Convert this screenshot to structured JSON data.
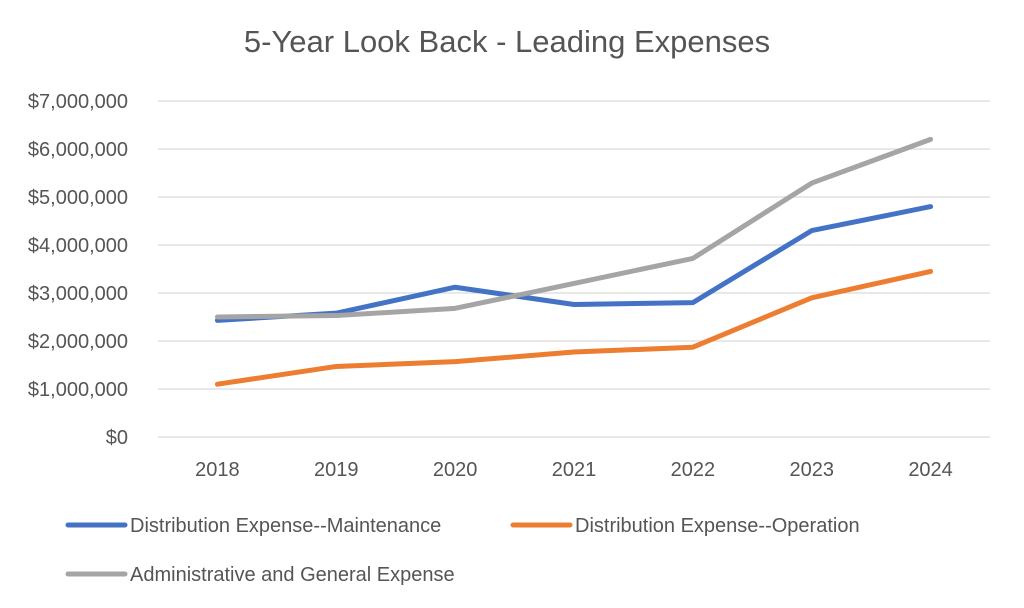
{
  "chart_data": {
    "type": "line",
    "title": "5-Year Look Back - Leading Expenses",
    "xlabel": "",
    "ylabel": "",
    "categories": [
      "2018",
      "2019",
      "2020",
      "2021",
      "2022",
      "2023",
      "2024"
    ],
    "ylim": [
      0,
      7000000
    ],
    "yticks": [
      0,
      1000000,
      2000000,
      3000000,
      4000000,
      5000000,
      6000000,
      7000000
    ],
    "ytick_labels": [
      "$0",
      "$1,000,000",
      "$2,000,000",
      "$3,000,000",
      "$4,000,000",
      "$5,000,000",
      "$6,000,000",
      "$7,000,000"
    ],
    "grid": "horizontal",
    "legend_position": "bottom",
    "series": [
      {
        "name": "Distribution Expense--Maintenance",
        "color": "#4472C4",
        "values": [
          2430000,
          2580000,
          3120000,
          2760000,
          2800000,
          4300000,
          4800000
        ]
      },
      {
        "name": "Distribution Expense--Operation",
        "color": "#ED7D31",
        "values": [
          1100000,
          1470000,
          1570000,
          1770000,
          1870000,
          2900000,
          3450000
        ]
      },
      {
        "name": "Administrative and General Expense",
        "color": "#A5A5A5",
        "values": [
          2500000,
          2530000,
          2680000,
          3200000,
          3720000,
          5290000,
          6200000
        ]
      }
    ]
  }
}
